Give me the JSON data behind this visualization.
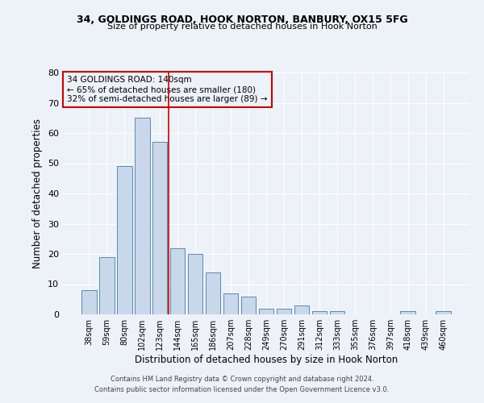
{
  "title1": "34, GOLDINGS ROAD, HOOK NORTON, BANBURY, OX15 5FG",
  "title2": "Size of property relative to detached houses in Hook Norton",
  "xlabel": "Distribution of detached houses by size in Hook Norton",
  "ylabel": "Number of detached properties",
  "bar_labels": [
    "38sqm",
    "59sqm",
    "80sqm",
    "102sqm",
    "123sqm",
    "144sqm",
    "165sqm",
    "186sqm",
    "207sqm",
    "228sqm",
    "249sqm",
    "270sqm",
    "291sqm",
    "312sqm",
    "333sqm",
    "355sqm",
    "376sqm",
    "397sqm",
    "418sqm",
    "439sqm",
    "460sqm"
  ],
  "bar_values": [
    8,
    19,
    49,
    65,
    57,
    22,
    20,
    14,
    7,
    6,
    2,
    2,
    3,
    1,
    1,
    0,
    0,
    0,
    1,
    0,
    1
  ],
  "bar_color": "#c8d8ea",
  "bar_edge_color": "#5a8ab5",
  "ylim": [
    0,
    80
  ],
  "yticks": [
    0,
    10,
    20,
    30,
    40,
    50,
    60,
    70,
    80
  ],
  "vline_x": 4.5,
  "vline_color": "#cc0000",
  "annotation_line1": "34 GOLDINGS ROAD: 140sqm",
  "annotation_line2": "← 65% of detached houses are smaller (180)",
  "annotation_line3": "32% of semi-detached houses are larger (89) →",
  "footer_line1": "Contains HM Land Registry data © Crown copyright and database right 2024.",
  "footer_line2": "Contains public sector information licensed under the Open Government Licence v3.0.",
  "bg_color": "#edf2f8",
  "plot_bg_color": "#edf2f8"
}
